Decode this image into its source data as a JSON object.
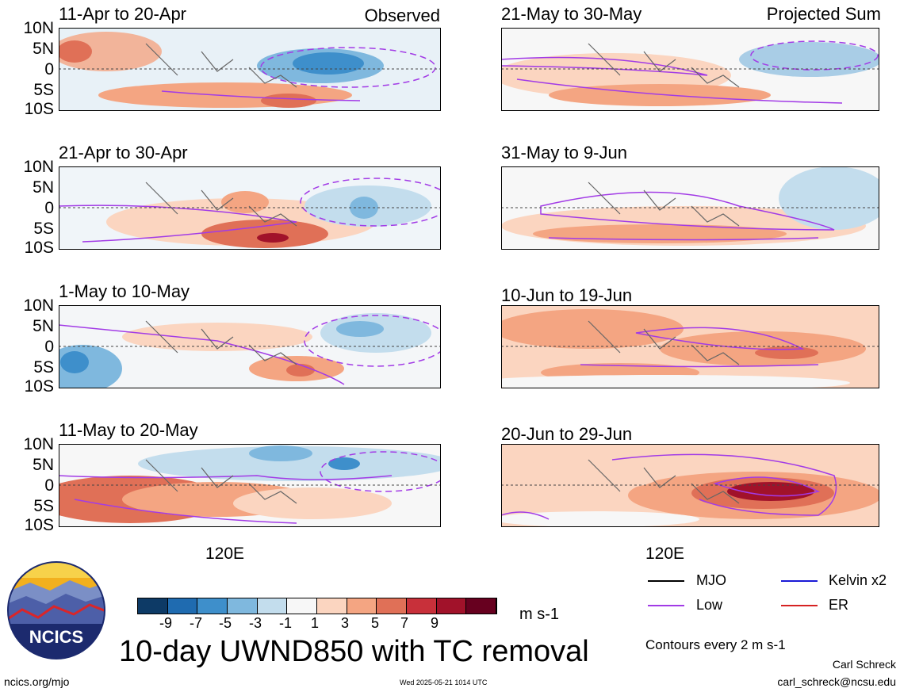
{
  "header": {
    "observed_label": "Observed",
    "projected_label": "Projected Sum"
  },
  "axes": {
    "lat_labels": [
      "10N",
      "5N",
      "0",
      "5S",
      "10S"
    ],
    "lon_label": "120E"
  },
  "panels": [
    {
      "title": "11-Apr to 20-Apr"
    },
    {
      "title": "21-May to 30-May"
    },
    {
      "title": "21-Apr to 30-Apr"
    },
    {
      "title": "31-May to 9-Jun"
    },
    {
      "title": "1-May to 10-May"
    },
    {
      "title": "10-Jun to 19-Jun"
    },
    {
      "title": "11-May to 20-May"
    },
    {
      "title": "20-Jun to 29-Jun"
    }
  ],
  "colorbar": {
    "colors": [
      "#0d3a66",
      "#1f6bb0",
      "#3e8fcb",
      "#7fb8de",
      "#c3dded",
      "#f7f7f7",
      "#fbd5c0",
      "#f4a582",
      "#e07057",
      "#c8303a",
      "#a1122a",
      "#67001f"
    ],
    "labels": [
      "-9",
      "-7",
      "-5",
      "-3",
      "-1",
      "1",
      "3",
      "5",
      "7",
      "9"
    ],
    "units": "m s-1"
  },
  "legend": {
    "items": [
      {
        "label": "MJO",
        "color": "#000000"
      },
      {
        "label": "Kelvin x2",
        "color": "#1a1ad6"
      },
      {
        "label": "Low",
        "color": "#a23be6"
      },
      {
        "label": "ER",
        "color": "#d62222"
      }
    ],
    "contour_note": "Contours every 2 m s-1"
  },
  "footer": {
    "main_title": "10-day UWND850 with TC removal",
    "url": "ncics.org/mjo",
    "timestamp": "Wed 2025-05-21 1014 UTC",
    "author": "Carl Schreck",
    "email": "carl_schreck@ncsu.edu",
    "logo_text": "NCICS"
  }
}
